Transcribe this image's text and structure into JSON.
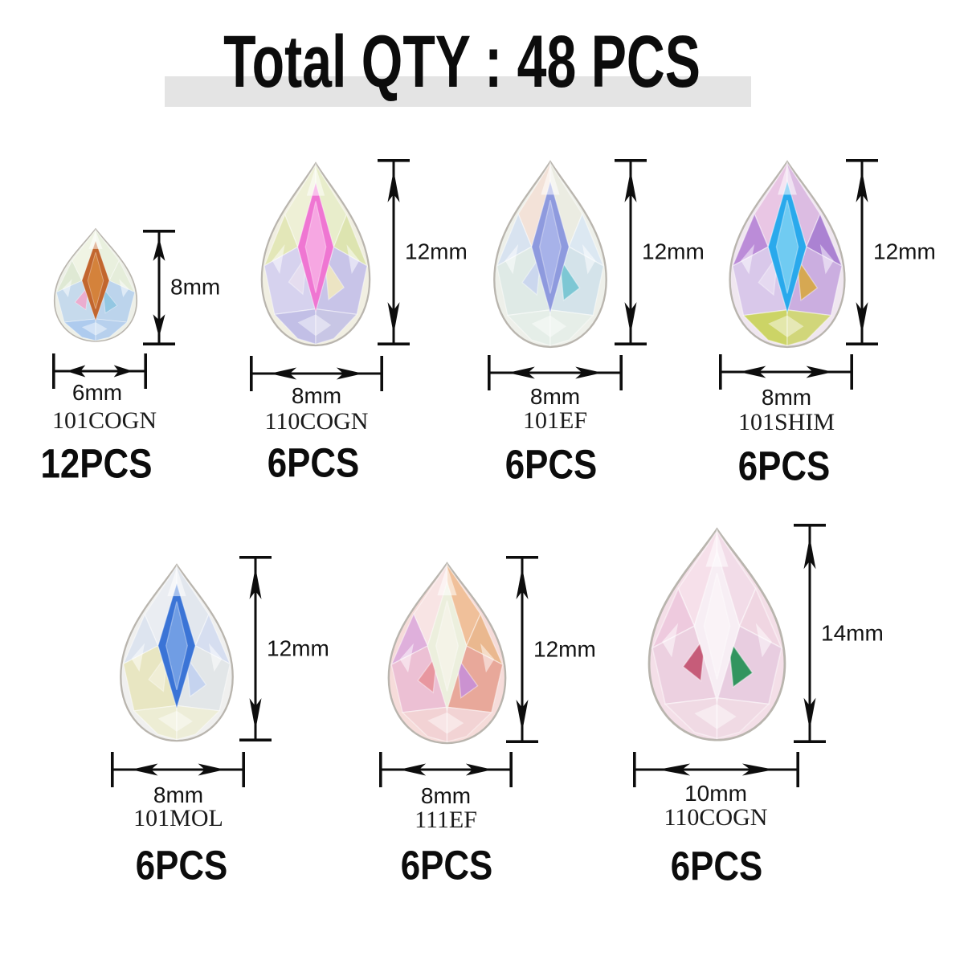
{
  "title": "Total QTY : 48 PCS",
  "accent_colors": {
    "arrow": "#0d0d0d",
    "title_highlight": "#e4e4e4"
  },
  "items": [
    {
      "height": "8mm",
      "width": "6mm",
      "code": "101COGN",
      "qty": "12PCS",
      "colors": {
        "base": "#eef0e8",
        "tip_left": "#f0f4e4",
        "tip_right": "#e9f0de",
        "left": "#dfe9d4",
        "right": "#e5edda",
        "lower_left": "#c6daec",
        "lower_right": "#bcd4ec",
        "bottom": "#aecbee",
        "center": "#c2662e",
        "center_inner": "#d98a3f",
        "accent1": "#8fc6e2",
        "accent2": "#f2a6ca"
      }
    },
    {
      "height": "12mm",
      "width": "8mm",
      "code": "110COGN",
      "qty": "6PCS",
      "colors": {
        "base": "#f1efe2",
        "tip_left": "#eef0d6",
        "tip_right": "#e8edcb",
        "left": "#e3e7b8",
        "right": "#dde4b0",
        "lower_left": "#d6d2ee",
        "lower_right": "#c8c4e8",
        "bottom": "#c2bfe6",
        "center": "#ef76d2",
        "center_inner": "#f8b4e6",
        "accent1": "#f0e8c0",
        "accent2": "#e8e0f0"
      }
    },
    {
      "height": "12mm",
      "width": "8mm",
      "code": "101EF",
      "qty": "6PCS",
      "colors": {
        "base": "#eef0ea",
        "tip_left": "#f3e2d8",
        "tip_right": "#ebece2",
        "left": "#d8e3f0",
        "right": "#dce8f2",
        "lower_left": "#dfeae6",
        "lower_right": "#d4e3ea",
        "bottom": "#e5eee8",
        "center": "#8e9ade",
        "center_inner": "#aeb8ec",
        "accent1": "#74c4d2",
        "accent2": "#c8d4f0"
      }
    },
    {
      "height": "12mm",
      "width": "8mm",
      "code": "101SHIM",
      "qty": "6PCS",
      "colors": {
        "base": "#f0e7f0",
        "tip_left": "#e9c6e4",
        "tip_right": "#dcbce2",
        "left": "#bb8cd8",
        "right": "#ab82d2",
        "lower_left": "#d9c8ea",
        "lower_right": "#cbaee0",
        "bottom": "#ccd466",
        "center": "#29a9ec",
        "center_inner": "#82d4f4",
        "accent1": "#d8a843",
        "accent2": "#e8ddf2"
      }
    },
    {
      "height": "12mm",
      "width": "8mm",
      "code": "101MOL",
      "qty": "6PCS",
      "colors": {
        "base": "#f0f0ef",
        "tip_left": "#eaedf2",
        "tip_right": "#e2e7ee",
        "left": "#dde4ef",
        "right": "#d6def0",
        "lower_left": "#e8e6c2",
        "lower_right": "#e2e6e8",
        "bottom": "#ededd4",
        "center": "#3b74d6",
        "center_inner": "#7ea8e8",
        "accent1": "#c2d2f0",
        "accent2": "#f2f0da"
      }
    },
    {
      "height": "12mm",
      "width": "8mm",
      "code": "111EF",
      "qty": "6PCS",
      "colors": {
        "base": "#f6dcda",
        "tip_left": "#f8e4e4",
        "tip_right": "#f0c09a",
        "left": "#dfb0dc",
        "right": "#eab88f",
        "lower_left": "#ecc0d4",
        "lower_right": "#e8a89a",
        "bottom": "#f2d2d4",
        "center": "#ecefdd",
        "center_inner": "#f6f4ea",
        "accent1": "#c890d8",
        "accent2": "#e89098"
      }
    },
    {
      "height": "14mm",
      "width": "10mm",
      "code": "110COGN",
      "qty": "6PCS",
      "colors": {
        "base": "#f4dfe8",
        "tip_left": "#f6e0ea",
        "tip_right": "#f2dce8",
        "left": "#eecade",
        "right": "#f0d6e2",
        "lower_left": "#ecd0e0",
        "lower_right": "#e8cde0",
        "bottom": "#f0dae4",
        "center": "#f7eef4",
        "center_inner": "#fbf5f8",
        "accent1": "#1f8f52",
        "accent2": "#c04868"
      }
    }
  ]
}
